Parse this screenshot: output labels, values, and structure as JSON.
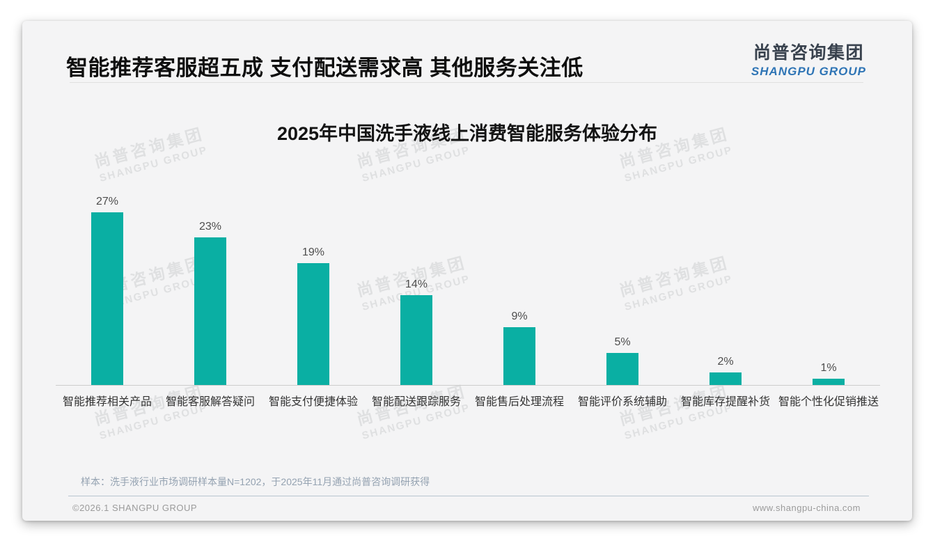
{
  "header": {
    "title": "智能推荐客服超五成 支付配送需求高 其他服务关注低",
    "logo": {
      "cn": "尚普咨询集团",
      "en": "SHANGPU GROUP"
    }
  },
  "watermark": {
    "cn": "尚普咨询集团",
    "en": "SHANGPU GROUP"
  },
  "chart_data": {
    "type": "bar",
    "title": "2025年中国洗手液线上消费智能服务体验分布",
    "categories": [
      "智能推荐相关产品",
      "智能客服解答疑问",
      "智能支付便捷体验",
      "智能配送跟踪服务",
      "智能售后处理流程",
      "智能评价系统辅助",
      "智能库存提醒补货",
      "智能个性化促销推送"
    ],
    "values": [
      27,
      23,
      19,
      14,
      9,
      5,
      2,
      1
    ],
    "value_labels": [
      "27%",
      "23%",
      "19%",
      "14%",
      "9%",
      "5%",
      "2%",
      "1%"
    ],
    "unit": "%",
    "bar_color": "#0aafa3",
    "xlabel": "",
    "ylabel": "",
    "ylim": [
      0,
      30
    ],
    "grid": false,
    "legend": "none"
  },
  "footnote": "样本：洗手液行业市场调研样本量N=1202，于2025年11月通过尚普咨询调研获得",
  "footer": {
    "left": "©2026.1 SHANGPU GROUP",
    "right": "www.shangpu-china.com"
  }
}
